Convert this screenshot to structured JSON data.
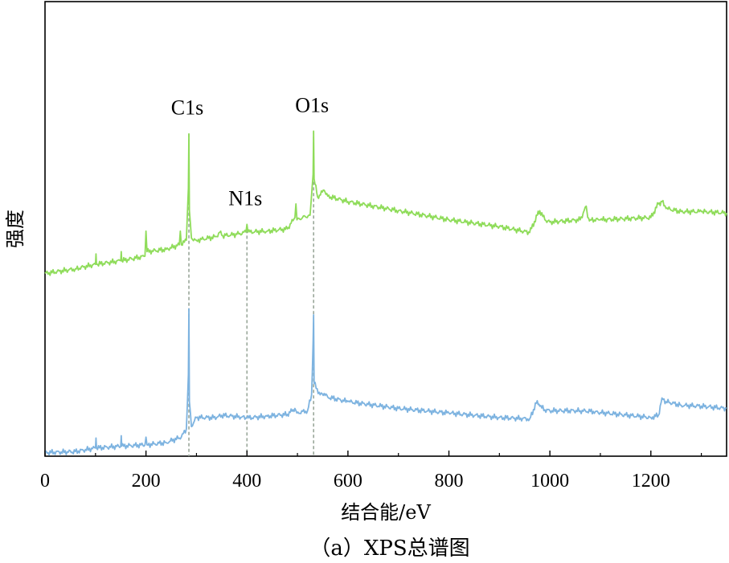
{
  "chart_data": {
    "type": "line",
    "xlabel": "结合能/eV",
    "ylabel": "强度",
    "caption": "（a）XPS总谱图",
    "xlim": [
      0,
      1350
    ],
    "ylim": [
      0,
      10
    ],
    "x_ticks": [
      0,
      200,
      400,
      600,
      800,
      1000,
      1200
    ],
    "x_tick_labels": [
      "0",
      "200",
      "400",
      "600",
      "800",
      "1000",
      "1200"
    ],
    "y_ticks_shown": false,
    "grid": false,
    "series": [
      {
        "color": "#8fdc5a",
        "x": [
          0,
          60,
          100,
          101,
          102,
          150,
          151,
          152,
          198,
          200,
          202,
          240,
          266,
          268,
          270,
          280,
          284,
          285,
          286,
          290,
          300,
          340,
          348,
          352,
          380,
          398,
          400,
          402,
          440,
          480,
          495,
          497,
          499,
          510,
          525,
          531,
          532,
          533,
          540,
          553,
          560,
          600,
          700,
          800,
          900,
          960,
          975,
          980,
          990,
          1000,
          1060,
          1072,
          1075,
          1080,
          1100,
          1200,
          1215,
          1222,
          1230,
          1260,
          1300,
          1350
        ],
        "y": [
          4.02,
          4.12,
          4.22,
          4.45,
          4.22,
          4.3,
          4.5,
          4.3,
          4.4,
          4.95,
          4.5,
          4.55,
          4.65,
          4.95,
          4.65,
          4.75,
          5.9,
          7.09,
          5.4,
          4.8,
          4.75,
          4.83,
          4.95,
          4.85,
          4.88,
          4.93,
          5.1,
          4.93,
          4.95,
          5.0,
          5.25,
          5.55,
          5.2,
          5.25,
          5.3,
          6.2,
          7.15,
          6.1,
          5.7,
          5.85,
          5.72,
          5.6,
          5.4,
          5.2,
          5.05,
          4.92,
          5.3,
          5.4,
          5.2,
          5.15,
          5.2,
          5.5,
          5.25,
          5.2,
          5.2,
          5.25,
          5.55,
          5.6,
          5.45,
          5.38,
          5.38,
          5.35
        ]
      },
      {
        "color": "#7db3e0",
        "x": [
          0,
          60,
          100,
          101,
          102,
          150,
          151,
          152,
          198,
          200,
          202,
          240,
          270,
          280,
          284,
          285,
          286,
          290,
          300,
          340,
          350,
          390,
          400,
          440,
          480,
          495,
          497,
          499,
          520,
          528,
          531,
          532,
          533,
          545,
          553,
          560,
          600,
          700,
          800,
          900,
          960,
          975,
          980,
          990,
          1000,
          1060,
          1090,
          1100,
          1200,
          1215,
          1222,
          1230,
          1260,
          1300,
          1350
        ],
        "y": [
          0.08,
          0.1,
          0.18,
          0.4,
          0.18,
          0.22,
          0.45,
          0.22,
          0.25,
          0.42,
          0.25,
          0.3,
          0.42,
          0.6,
          1.8,
          3.24,
          1.2,
          0.65,
          0.85,
          0.85,
          0.9,
          0.86,
          0.84,
          0.88,
          0.92,
          1.05,
          1.0,
          0.95,
          1.0,
          1.35,
          2.5,
          3.11,
          1.6,
          1.35,
          1.38,
          1.3,
          1.2,
          1.05,
          0.95,
          0.85,
          0.82,
          1.22,
          1.1,
          1.02,
          1.0,
          1.0,
          0.98,
          0.96,
          0.85,
          0.9,
          1.28,
          1.2,
          1.12,
          1.1,
          1.05
        ]
      }
    ],
    "reference_lines": [
      {
        "x": 285,
        "label": "C1s"
      },
      {
        "x": 400,
        "label": "N1s"
      },
      {
        "x": 532,
        "label": "O1s"
      }
    ]
  }
}
